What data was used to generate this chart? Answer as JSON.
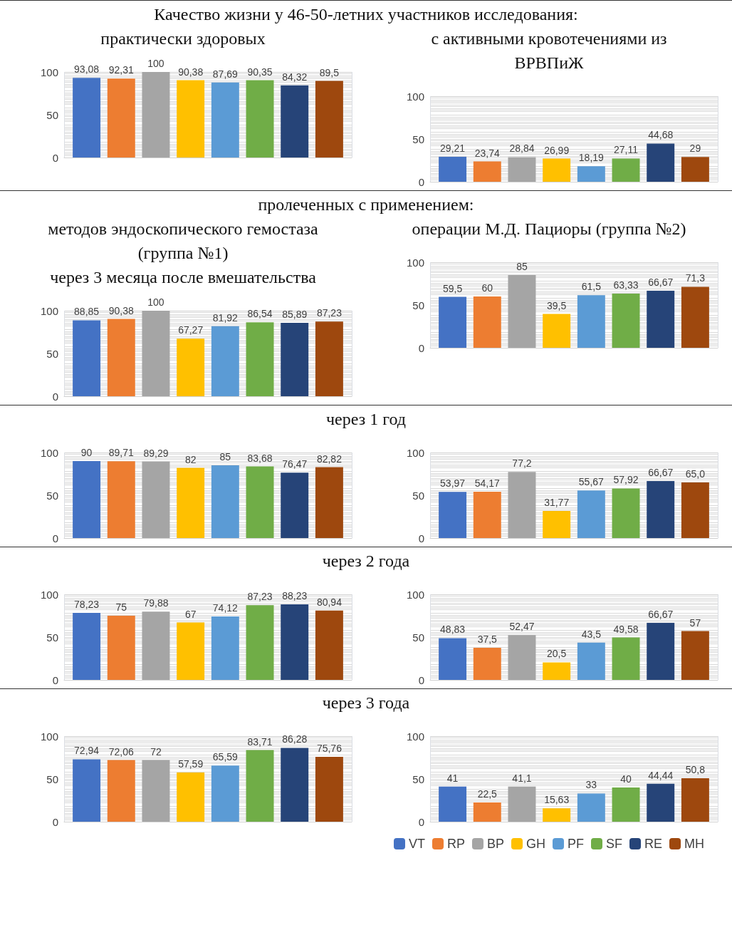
{
  "chart_data": [
    {
      "type": "bar",
      "title": "Качество жизни у 46-50-летних участников исследования:",
      "subtitle": "практически здоровых",
      "categories": [
        null
      ],
      "ylim": [
        0,
        100
      ],
      "yticks": [
        0,
        50,
        100
      ],
      "grid": true,
      "tick_labels": "y",
      "series": [
        {
          "color": "#4472c4",
          "values": [
            93.08
          ],
          "value_labels": [
            "93,08"
          ]
        },
        {
          "color": "#ed7d31",
          "values": [
            92.31
          ],
          "value_labels": [
            "92,31"
          ]
        },
        {
          "color": "#a5a5a5",
          "values": [
            100
          ],
          "value_labels": [
            "100"
          ]
        },
        {
          "color": "#ffc000",
          "values": [
            90.38
          ],
          "value_labels": [
            "90,38"
          ]
        },
        {
          "color": "#5b9bd5",
          "values": [
            87.69
          ],
          "value_labels": [
            "87,69"
          ]
        },
        {
          "color": "#70ad47",
          "values": [
            90.35
          ],
          "value_labels": [
            "90,35"
          ]
        },
        {
          "color": "#264478",
          "values": [
            84.32
          ],
          "value_labels": [
            "84,32"
          ]
        },
        {
          "color": "#9e480e",
          "values": [
            89.5
          ],
          "value_labels": [
            "89,5"
          ]
        }
      ]
    },
    {
      "type": "bar",
      "subtitle": "с активными кровотечениями из ВРВПиЖ",
      "categories": [
        null
      ],
      "ylim": [
        0,
        100
      ],
      "yticks": [
        0,
        50,
        100
      ],
      "grid": true,
      "tick_labels": "y",
      "series": [
        {
          "color": "#4472c4",
          "values": [
            29.21
          ],
          "value_labels": [
            "29,21"
          ]
        },
        {
          "color": "#ed7d31",
          "values": [
            23.74
          ],
          "value_labels": [
            "23,74"
          ]
        },
        {
          "color": "#a5a5a5",
          "values": [
            28.84
          ],
          "value_labels": [
            "28,84"
          ]
        },
        {
          "color": "#ffc000",
          "values": [
            26.99
          ],
          "value_labels": [
            "26,99"
          ]
        },
        {
          "color": "#5b9bd5",
          "values": [
            18.19
          ],
          "value_labels": [
            "18,19"
          ]
        },
        {
          "color": "#70ad47",
          "values": [
            27.11
          ],
          "value_labels": [
            "27,11"
          ]
        },
        {
          "color": "#264478",
          "values": [
            44.68
          ],
          "value_labels": [
            "44,68"
          ]
        },
        {
          "color": "#9e480e",
          "values": [
            29
          ],
          "value_labels": [
            "29"
          ]
        }
      ]
    },
    {
      "type": "bar",
      "title": "пролеченных с применением:",
      "subtitle": "методов эндоскопического гемостаза (группа №1)",
      "annotations": [
        "через 3 месяца после вмешательства"
      ],
      "categories": [
        null
      ],
      "ylim": [
        0,
        100
      ],
      "yticks": [
        0,
        50,
        100
      ],
      "grid": true,
      "tick_labels": "y",
      "series": [
        {
          "color": "#4472c4",
          "values": [
            88.85
          ],
          "value_labels": [
            "88,85"
          ]
        },
        {
          "color": "#ed7d31",
          "values": [
            90.38
          ],
          "value_labels": [
            "90,38"
          ]
        },
        {
          "color": "#a5a5a5",
          "values": [
            100
          ],
          "value_labels": [
            "100"
          ]
        },
        {
          "color": "#ffc000",
          "values": [
            67.27
          ],
          "value_labels": [
            "67,27"
          ]
        },
        {
          "color": "#5b9bd5",
          "values": [
            81.92
          ],
          "value_labels": [
            "81,92"
          ]
        },
        {
          "color": "#70ad47",
          "values": [
            86.54
          ],
          "value_labels": [
            "86,54"
          ]
        },
        {
          "color": "#264478",
          "values": [
            85.89
          ],
          "value_labels": [
            "85,89"
          ]
        },
        {
          "color": "#9e480e",
          "values": [
            87.23
          ],
          "value_labels": [
            "87,23"
          ]
        }
      ]
    },
    {
      "type": "bar",
      "subtitle": "операции М.Д. Пациоры (группа №2)",
      "categories": [
        null
      ],
      "ylim": [
        0,
        100
      ],
      "yticks": [
        0,
        50,
        100
      ],
      "grid": true,
      "tick_labels": "y",
      "series": [
        {
          "color": "#4472c4",
          "values": [
            59.5
          ],
          "value_labels": [
            "59,5"
          ]
        },
        {
          "color": "#ed7d31",
          "values": [
            60
          ],
          "value_labels": [
            "60"
          ]
        },
        {
          "color": "#a5a5a5",
          "values": [
            85
          ],
          "value_labels": [
            "85"
          ]
        },
        {
          "color": "#ffc000",
          "values": [
            39.5
          ],
          "value_labels": [
            "39,5"
          ]
        },
        {
          "color": "#5b9bd5",
          "values": [
            61.5
          ],
          "value_labels": [
            "61,5"
          ]
        },
        {
          "color": "#70ad47",
          "values": [
            63.33
          ],
          "value_labels": [
            "63,33"
          ]
        },
        {
          "color": "#264478",
          "values": [
            66.67
          ],
          "value_labels": [
            "66,67"
          ]
        },
        {
          "color": "#9e480e",
          "values": [
            71.3
          ],
          "value_labels": [
            "71,3"
          ]
        }
      ]
    },
    {
      "type": "bar",
      "title": "через 1 год",
      "categories": [
        null
      ],
      "ylim": [
        0,
        100
      ],
      "yticks": [
        0,
        50,
        100
      ],
      "grid": true,
      "tick_labels": "y",
      "series": [
        {
          "color": "#4472c4",
          "values": [
            90
          ],
          "value_labels": [
            "90"
          ]
        },
        {
          "color": "#ed7d31",
          "values": [
            89.71
          ],
          "value_labels": [
            "89,71"
          ]
        },
        {
          "color": "#a5a5a5",
          "values": [
            89.29
          ],
          "value_labels": [
            "89,29"
          ]
        },
        {
          "color": "#ffc000",
          "values": [
            82
          ],
          "value_labels": [
            "82"
          ]
        },
        {
          "color": "#5b9bd5",
          "values": [
            85
          ],
          "value_labels": [
            "85"
          ]
        },
        {
          "color": "#70ad47",
          "values": [
            83.68
          ],
          "value_labels": [
            "83,68"
          ]
        },
        {
          "color": "#264478",
          "values": [
            76.47
          ],
          "value_labels": [
            "76,47"
          ]
        },
        {
          "color": "#9e480e",
          "values": [
            82.82
          ],
          "value_labels": [
            "82,82"
          ]
        }
      ]
    },
    {
      "type": "bar",
      "categories": [
        null
      ],
      "ylim": [
        0,
        100
      ],
      "yticks": [
        0,
        50,
        100
      ],
      "grid": true,
      "tick_labels": "y",
      "series": [
        {
          "color": "#4472c4",
          "values": [
            53.97
          ],
          "value_labels": [
            "53,97"
          ]
        },
        {
          "color": "#ed7d31",
          "values": [
            54.17
          ],
          "value_labels": [
            "54,17"
          ]
        },
        {
          "color": "#a5a5a5",
          "values": [
            77.2
          ],
          "value_labels": [
            "77,2"
          ]
        },
        {
          "color": "#ffc000",
          "values": [
            31.77
          ],
          "value_labels": [
            "31,77"
          ]
        },
        {
          "color": "#5b9bd5",
          "values": [
            55.67
          ],
          "value_labels": [
            "55,67"
          ]
        },
        {
          "color": "#70ad47",
          "values": [
            57.92
          ],
          "value_labels": [
            "57,92"
          ]
        },
        {
          "color": "#264478",
          "values": [
            66.67
          ],
          "value_labels": [
            "66,67"
          ]
        },
        {
          "color": "#9e480e",
          "values": [
            65
          ],
          "value_labels": [
            "65,0"
          ]
        }
      ]
    },
    {
      "type": "bar",
      "title": "через 2 года",
      "categories": [
        null
      ],
      "ylim": [
        0,
        100
      ],
      "yticks": [
        0,
        50,
        100
      ],
      "grid": true,
      "tick_labels": "y",
      "series": [
        {
          "color": "#4472c4",
          "values": [
            78.23
          ],
          "value_labels": [
            "78,23"
          ]
        },
        {
          "color": "#ed7d31",
          "values": [
            75
          ],
          "value_labels": [
            "75"
          ]
        },
        {
          "color": "#a5a5a5",
          "values": [
            79.88
          ],
          "value_labels": [
            "79,88"
          ]
        },
        {
          "color": "#ffc000",
          "values": [
            67
          ],
          "value_labels": [
            "67"
          ]
        },
        {
          "color": "#5b9bd5",
          "values": [
            74.12
          ],
          "value_labels": [
            "74,12"
          ]
        },
        {
          "color": "#70ad47",
          "values": [
            87.23
          ],
          "value_labels": [
            "87,23"
          ]
        },
        {
          "color": "#264478",
          "values": [
            88.23
          ],
          "value_labels": [
            "88,23"
          ]
        },
        {
          "color": "#9e480e",
          "values": [
            80.94
          ],
          "value_labels": [
            "80,94"
          ]
        }
      ]
    },
    {
      "type": "bar",
      "categories": [
        null
      ],
      "ylim": [
        0,
        100
      ],
      "yticks": [
        0,
        50,
        100
      ],
      "grid": true,
      "tick_labels": "y",
      "series": [
        {
          "color": "#4472c4",
          "values": [
            48.83
          ],
          "value_labels": [
            "48,83"
          ]
        },
        {
          "color": "#ed7d31",
          "values": [
            37.5
          ],
          "value_labels": [
            "37,5"
          ]
        },
        {
          "color": "#a5a5a5",
          "values": [
            52.47
          ],
          "value_labels": [
            "52,47"
          ]
        },
        {
          "color": "#ffc000",
          "values": [
            20.5
          ],
          "value_labels": [
            "20,5"
          ]
        },
        {
          "color": "#5b9bd5",
          "values": [
            43.5
          ],
          "value_labels": [
            "43,5"
          ]
        },
        {
          "color": "#70ad47",
          "values": [
            49.58
          ],
          "value_labels": [
            "49,58"
          ]
        },
        {
          "color": "#264478",
          "values": [
            66.67
          ],
          "value_labels": [
            "66,67"
          ]
        },
        {
          "color": "#9e480e",
          "values": [
            57
          ],
          "value_labels": [
            "57"
          ]
        }
      ]
    },
    {
      "type": "bar",
      "title": "через 3 года",
      "categories": [
        null
      ],
      "ylim": [
        0,
        100
      ],
      "yticks": [
        0,
        50,
        100
      ],
      "grid": true,
      "tick_labels": "y",
      "series": [
        {
          "color": "#4472c4",
          "values": [
            72.94
          ],
          "value_labels": [
            "72,94"
          ]
        },
        {
          "color": "#ed7d31",
          "values": [
            72.06
          ],
          "value_labels": [
            "72,06"
          ]
        },
        {
          "color": "#a5a5a5",
          "values": [
            72
          ],
          "value_labels": [
            "72"
          ]
        },
        {
          "color": "#ffc000",
          "values": [
            57.59
          ],
          "value_labels": [
            "57,59"
          ]
        },
        {
          "color": "#5b9bd5",
          "values": [
            65.59
          ],
          "value_labels": [
            "65,59"
          ]
        },
        {
          "color": "#70ad47",
          "values": [
            83.71
          ],
          "value_labels": [
            "83,71"
          ]
        },
        {
          "color": "#264478",
          "values": [
            86.28
          ],
          "value_labels": [
            "86,28"
          ]
        },
        {
          "color": "#9e480e",
          "values": [
            75.76
          ],
          "value_labels": [
            "75,76"
          ]
        }
      ]
    },
    {
      "type": "bar",
      "categories": [
        null
      ],
      "ylim": [
        0,
        100
      ],
      "yticks": [
        0,
        50,
        100
      ],
      "grid": true,
      "tick_labels": "y",
      "legend": "bottom",
      "series": [
        {
          "name": "VT",
          "color": "#4472c4",
          "values": [
            41
          ],
          "value_labels": [
            "41"
          ]
        },
        {
          "name": "RP",
          "color": "#ed7d31",
          "values": [
            22.5
          ],
          "value_labels": [
            "22,5"
          ]
        },
        {
          "name": "BP",
          "color": "#a5a5a5",
          "values": [
            41.1
          ],
          "value_labels": [
            "41,1"
          ]
        },
        {
          "name": "GH",
          "color": "#ffc000",
          "values": [
            15.63
          ],
          "value_labels": [
            "15,63"
          ]
        },
        {
          "name": "PF",
          "color": "#5b9bd5",
          "values": [
            33
          ],
          "value_labels": [
            "33"
          ]
        },
        {
          "name": "SF",
          "color": "#70ad47",
          "values": [
            40
          ],
          "value_labels": [
            "40"
          ]
        },
        {
          "name": "RE",
          "color": "#264478",
          "values": [
            44.44
          ],
          "value_labels": [
            "44,44"
          ]
        },
        {
          "name": "MH",
          "color": "#9e480e",
          "values": [
            50.8
          ],
          "value_labels": [
            "50,8"
          ]
        }
      ]
    }
  ]
}
